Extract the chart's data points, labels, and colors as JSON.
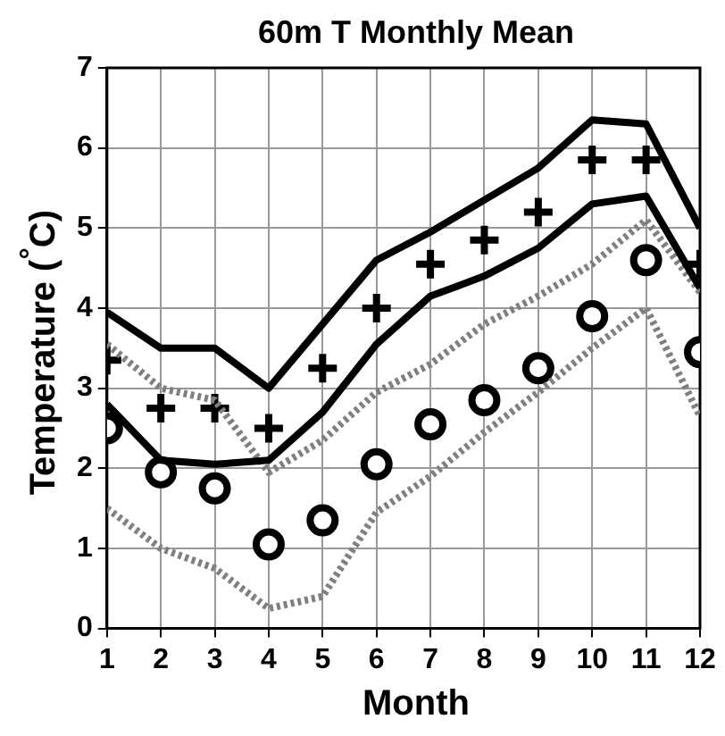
{
  "chart_data": {
    "type": "line",
    "title": "60m T Monthly Mean",
    "xlabel": "Month",
    "ylabel": "Temperature ($^{°}$C)",
    "x": [
      1,
      2,
      3,
      4,
      5,
      6,
      7,
      8,
      9,
      10,
      11,
      12
    ],
    "xlim": [
      1,
      12
    ],
    "xticks": [
      1,
      2,
      3,
      4,
      5,
      6,
      7,
      8,
      9,
      10,
      11,
      12
    ],
    "ylim": [
      0,
      7
    ],
    "yticks": [
      0,
      1,
      2,
      3,
      4,
      5,
      6,
      7
    ],
    "grid": true,
    "legend": false,
    "series": [
      {
        "type": "line",
        "color": "#000000",
        "marker": "none",
        "line_style": "solid",
        "values": [
          3.95,
          3.5,
          3.5,
          3.0,
          3.8,
          4.6,
          4.95,
          5.35,
          5.75,
          6.35,
          6.3,
          5.0
        ]
      },
      {
        "type": "line",
        "color": "#000000",
        "marker": "none",
        "line_style": "solid",
        "values": [
          2.8,
          2.1,
          2.05,
          2.1,
          2.7,
          3.55,
          4.15,
          4.4,
          4.75,
          5.3,
          5.4,
          4.25
        ]
      },
      {
        "type": "line",
        "color": "#808080",
        "marker": "none",
        "line_style": "dotted",
        "values": [
          3.55,
          3.0,
          2.85,
          1.95,
          2.35,
          2.95,
          3.3,
          3.8,
          4.15,
          4.55,
          5.1,
          4.2
        ]
      },
      {
        "type": "line",
        "color": "#808080",
        "marker": "none",
        "line_style": "dotted",
        "values": [
          1.5,
          1.0,
          0.75,
          0.25,
          0.4,
          1.45,
          1.9,
          2.45,
          2.95,
          3.5,
          4.0,
          2.65
        ]
      },
      {
        "type": "scatter",
        "color": "#000000",
        "marker": "cross",
        "values": [
          3.35,
          2.75,
          2.75,
          2.5,
          3.25,
          4.0,
          4.55,
          4.85,
          5.2,
          5.85,
          5.85,
          4.55
        ]
      },
      {
        "type": "scatter",
        "color": "#000000",
        "marker": "circle",
        "values": [
          2.5,
          1.95,
          1.75,
          1.05,
          1.35,
          2.05,
          2.55,
          2.85,
          3.25,
          3.9,
          4.6,
          3.45
        ]
      }
    ]
  }
}
